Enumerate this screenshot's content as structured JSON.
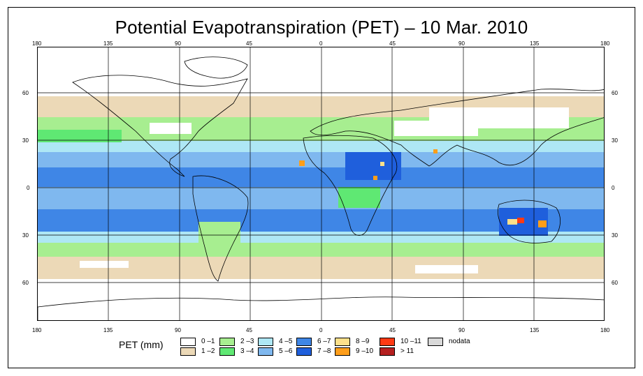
{
  "title": "Potential Evapotranspiration (PET) – 10 Mar. 2010",
  "axis_labels": {
    "lon": [
      "180",
      "135",
      "90",
      "45",
      "0",
      "45",
      "90",
      "135",
      "180"
    ],
    "lat": [
      "60",
      "30",
      "0",
      "30",
      "60"
    ]
  },
  "legend": {
    "title": "PET (mm)",
    "items": [
      {
        "label": "0 –1",
        "color": "#ffffff"
      },
      {
        "label": "1 –2",
        "color": "#ecd9b7"
      },
      {
        "label": "2 –3",
        "color": "#a7ee90"
      },
      {
        "label": "3 –4",
        "color": "#5fe873"
      },
      {
        "label": "4 –5",
        "color": "#aee7f5"
      },
      {
        "label": "5 –6",
        "color": "#7fb8ef"
      },
      {
        "label": "6 –7",
        "color": "#3f86e6"
      },
      {
        "label": "7 –8",
        "color": "#1f5fdc"
      },
      {
        "label": "8 –9",
        "color": "#fde08a"
      },
      {
        "label": "9 –10",
        "color": "#ff9e1a"
      },
      {
        "label": "10 –11",
        "color": "#ff3a14"
      },
      {
        "label": "> 11",
        "color": "#b52020"
      },
      {
        "label": "nodata",
        "color": "#d9d9d9"
      }
    ]
  }
}
